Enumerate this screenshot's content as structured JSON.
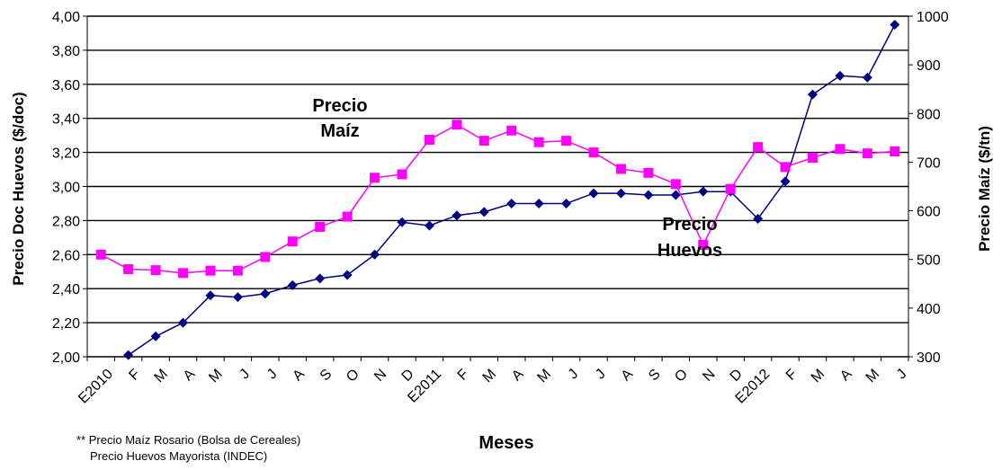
{
  "chart_data": {
    "type": "line",
    "xlabel": "Meses",
    "ylabel_left": "Precio Doc Huevos ($/doc)",
    "ylabel_right": "Precio Maíz ($/tn)",
    "categories": [
      "E2010",
      "F",
      "M",
      "A",
      "M",
      "J",
      "J",
      "A",
      "S",
      "O",
      "N",
      "D",
      "E2011",
      "F",
      "M",
      "A",
      "M",
      "J",
      "J",
      "A",
      "S",
      "O",
      "N",
      "D",
      "E2012",
      "F",
      "M",
      "A",
      "M",
      "J"
    ],
    "y_left": {
      "min": 2.0,
      "max": 4.0,
      "step": 0.2,
      "labels": [
        "2,00",
        "2,20",
        "2,40",
        "2,60",
        "2,80",
        "3,00",
        "3,20",
        "3,40",
        "3,60",
        "3,80",
        "4,00"
      ]
    },
    "y_right": {
      "min": 300,
      "max": 1000,
      "step": 100,
      "labels": [
        "300",
        "400",
        "500",
        "600",
        "700",
        "800",
        "900",
        "1000"
      ]
    },
    "grid": true,
    "series": [
      {
        "name": "Precio Huevos",
        "axis": "left",
        "color": "#000080",
        "marker": "diamond",
        "values": [
          null,
          2.01,
          2.12,
          2.2,
          2.36,
          2.35,
          2.37,
          2.42,
          2.46,
          2.48,
          2.6,
          2.79,
          2.77,
          2.83,
          2.85,
          2.9,
          2.9,
          2.9,
          2.96,
          2.96,
          2.95,
          2.95,
          2.97,
          2.97,
          2.81,
          3.03,
          3.54,
          3.65,
          3.64,
          3.95
        ]
      },
      {
        "name": "Precio Maíz",
        "axis": "right",
        "color": "#ff00ff",
        "marker": "square",
        "values": [
          510,
          480,
          478,
          472,
          477,
          477,
          505,
          537,
          567,
          588,
          668,
          675,
          746,
          777,
          744,
          765,
          741,
          744,
          720,
          686,
          678,
          655,
          530,
          645,
          731,
          690,
          709,
          727,
          718,
          722
        ]
      }
    ],
    "annotations": [
      {
        "lines": [
          "Precio",
          "Maíz"
        ]
      },
      {
        "lines": [
          "Precio",
          "Huevos"
        ]
      }
    ],
    "footnote": [
      "** Precio Maíz Rosario (Bolsa de Cereales)",
      "Precio Huevos Mayorista (INDEC)"
    ]
  }
}
